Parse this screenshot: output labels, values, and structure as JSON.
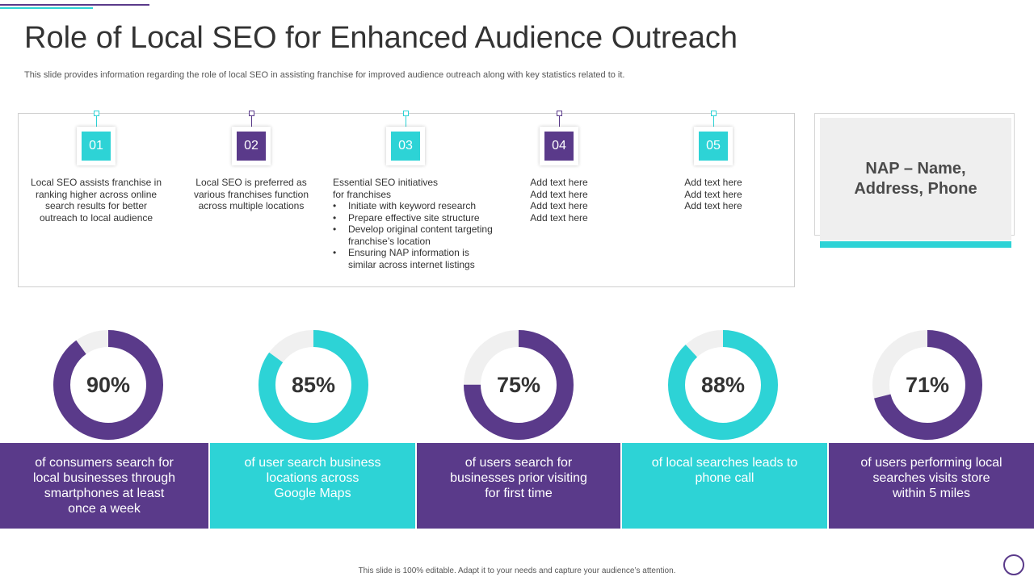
{
  "header": {
    "title": "Role of Local SEO for Enhanced Audience Outreach",
    "subtitle": "This slide provides information regarding the role of local SEO in assisting franchise for improved audience outreach along with key statistics related to it."
  },
  "colors": {
    "purple": "#5a3a8a",
    "cyan": "#2dd3d6",
    "track": "#f0f0f0"
  },
  "steps": [
    {
      "number": "01",
      "color": "cyan",
      "lines": [
        "Local SEO assists franchise in",
        "ranking higher across online",
        "search results for better",
        "outreach to local audience"
      ]
    },
    {
      "number": "02",
      "color": "purple",
      "lines": [
        "Local SEO is preferred as",
        "various franchises function",
        "across multiple locations"
      ]
    },
    {
      "number": "03",
      "color": "cyan",
      "intro": [
        "Essential SEO initiatives",
        "for franchises"
      ],
      "bullets": [
        [
          "Initiate with keyword research"
        ],
        [
          "Prepare effective site structure"
        ],
        [
          "Develop original content targeting",
          "franchise’s location"
        ],
        [
          "Ensuring NAP information is",
          "similar across internet listings"
        ]
      ]
    },
    {
      "number": "04",
      "color": "purple",
      "lines": [
        "Add text here",
        "Add text here",
        "Add text here",
        "Add text here"
      ]
    },
    {
      "number": "05",
      "color": "cyan",
      "lines": [
        "Add text here",
        "Add text here",
        "Add text here"
      ]
    }
  ],
  "nap": {
    "line1": "NAP – Name,",
    "line2": "Address, Phone"
  },
  "stats": [
    {
      "percent": "90%",
      "value": 90,
      "color": "purple",
      "lines": [
        "of consumers search for",
        "local businesses through",
        "smartphones  at least",
        "once a week"
      ]
    },
    {
      "percent": "85%",
      "value": 85,
      "color": "cyan",
      "lines": [
        "of user search business",
        "locations across",
        "Google Maps"
      ]
    },
    {
      "percent": "75%",
      "value": 75,
      "color": "purple",
      "lines": [
        "of users search for",
        "businesses prior visiting",
        "for first time"
      ]
    },
    {
      "percent": "88%",
      "value": 88,
      "color": "cyan",
      "lines": [
        "of local searches leads to",
        "phone call"
      ]
    },
    {
      "percent": "71%",
      "value": 71,
      "color": "purple",
      "lines": [
        "of users performing local",
        "searches visits store",
        "within 5 miles"
      ]
    }
  ],
  "footer": {
    "text": "This slide is 100% editable. Adapt it to your needs and capture your audience’s attention."
  }
}
